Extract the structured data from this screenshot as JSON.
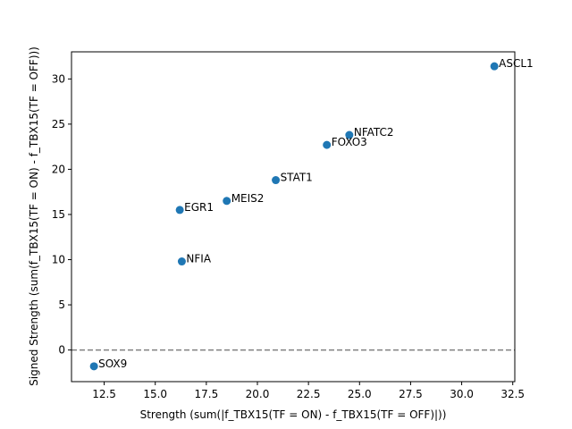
{
  "chart_data": {
    "type": "scatter",
    "title": "",
    "xlabel": "Strength (sum(|f_TBX15(TF = ON) - f_TBX15(TF = OFF)|))",
    "ylabel": "Signed Strength (sum(f_TBX15(TF = ON) - f_TBX15(TF = OFF)))",
    "xlim": [
      10.9,
      32.6
    ],
    "ylim": [
      -3.5,
      33.0
    ],
    "x_ticks": [
      12.5,
      15.0,
      17.5,
      20.0,
      22.5,
      25.0,
      27.5,
      30.0,
      32.5
    ],
    "x_tick_labels": [
      "12.5",
      "15.0",
      "17.5",
      "20.0",
      "22.5",
      "25.0",
      "27.5",
      "30.0",
      "32.5"
    ],
    "y_ticks": [
      0,
      5,
      10,
      15,
      20,
      25,
      30
    ],
    "y_tick_labels": [
      "0",
      "5",
      "10",
      "15",
      "20",
      "25",
      "30"
    ],
    "grid": false,
    "reference_line": {
      "y": 0,
      "style": "dashed",
      "color": "#808080"
    },
    "marker_color": "#1f77b4",
    "points": [
      {
        "label": "ASCL1",
        "x": 31.6,
        "y": 31.4
      },
      {
        "label": "NFATC2",
        "x": 24.5,
        "y": 23.8
      },
      {
        "label": "FOXO3",
        "x": 23.4,
        "y": 22.7
      },
      {
        "label": "STAT1",
        "x": 20.9,
        "y": 18.8
      },
      {
        "label": "MEIS2",
        "x": 18.5,
        "y": 16.5
      },
      {
        "label": "EGR1",
        "x": 16.2,
        "y": 15.5
      },
      {
        "label": "NFIA",
        "x": 16.3,
        "y": 9.8
      },
      {
        "label": "SOX9",
        "x": 12.0,
        "y": -1.8
      }
    ]
  }
}
